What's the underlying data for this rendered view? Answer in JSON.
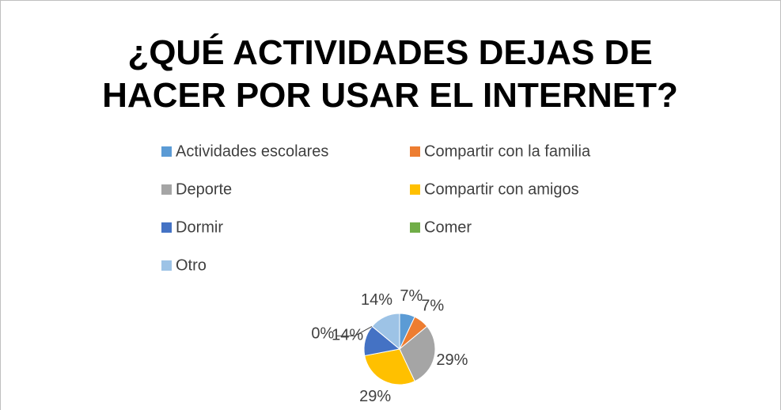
{
  "chart_data": {
    "type": "pie",
    "title": "¿QUÉ ACTIVIDADES DEJAS DE HACER POR USAR EL INTERNET?",
    "categories": [
      "Actividades escolares",
      "Compartir con la familia",
      "Deporte",
      "Compartir con amigos",
      "Dormir",
      "Comer",
      "Otro"
    ],
    "values": [
      7,
      7,
      29,
      29,
      14,
      0,
      14
    ],
    "value_labels": [
      "7%",
      "7%",
      "29%",
      "29%",
      "14%",
      "0%",
      "14%"
    ],
    "colors": [
      "#5b9bd5",
      "#ed7d31",
      "#a5a5a5",
      "#ffc000",
      "#4472c4",
      "#70ad47",
      "#9dc3e6"
    ],
    "legend": "top"
  }
}
